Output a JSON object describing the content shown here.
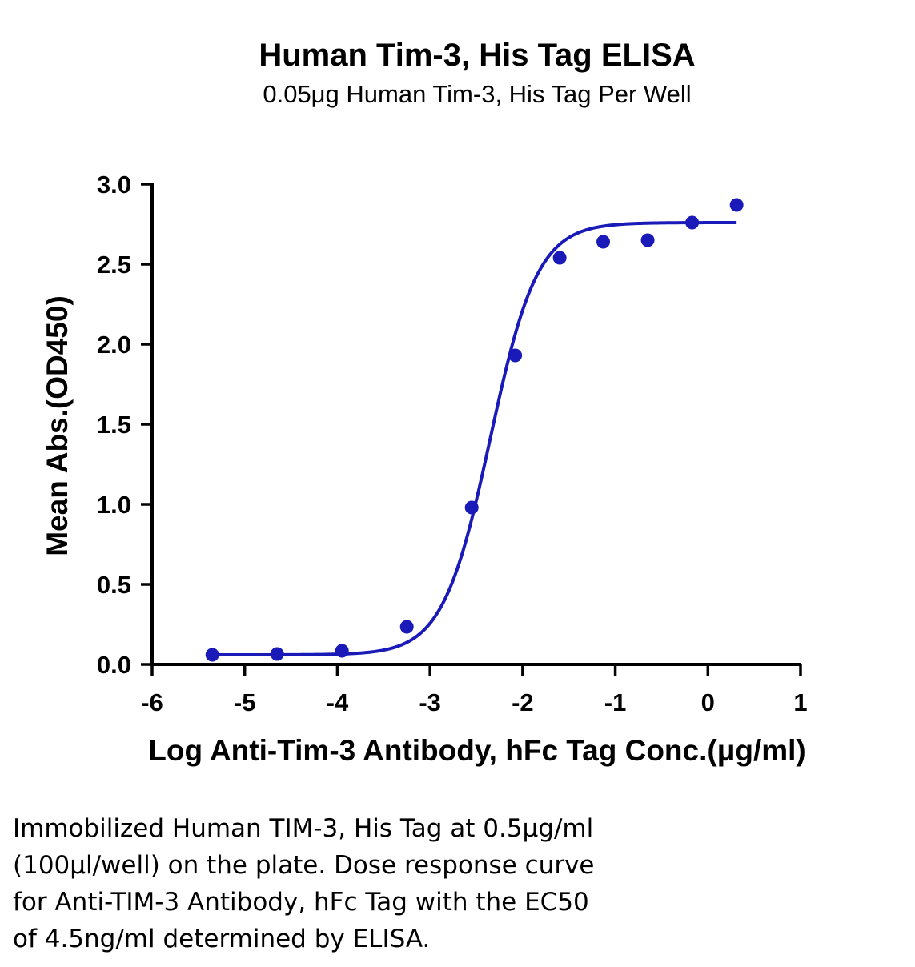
{
  "chart_data": {
    "type": "scatter",
    "title": "Human Tim-3, His Tag ELISA",
    "subtitle": "0.05μg Human Tim-3, His Tag Per Well",
    "xlabel": "Log Anti-Tim-3 Antibody, hFc Tag Conc.(μg/ml)",
    "ylabel": "Mean Abs.(OD450)",
    "xlim": [
      -6,
      1
    ],
    "ylim": [
      0,
      3.0
    ],
    "x_ticks": [
      "-6",
      "-5",
      "-4",
      "-3",
      "-2",
      "-1",
      "0",
      "1"
    ],
    "y_ticks": [
      "0.0",
      "0.5",
      "1.0",
      "1.5",
      "2.0",
      "2.5",
      "3.0"
    ],
    "grid": false,
    "series": [
      {
        "color": "#1a1ab8",
        "points": [
          {
            "x": -5.35,
            "y": 0.06
          },
          {
            "x": -4.65,
            "y": 0.065
          },
          {
            "x": -3.95,
            "y": 0.085
          },
          {
            "x": -3.25,
            "y": 0.235
          },
          {
            "x": -2.55,
            "y": 0.98
          },
          {
            "x": -2.08,
            "y": 1.93
          },
          {
            "x": -1.6,
            "y": 2.54
          },
          {
            "x": -1.13,
            "y": 2.64
          },
          {
            "x": -0.65,
            "y": 2.65
          },
          {
            "x": -0.17,
            "y": 2.76
          },
          {
            "x": 0.31,
            "y": 2.87
          }
        ],
        "fit": {
          "model": "4PL",
          "bottom": 0.06,
          "top": 2.76,
          "logEC50": -2.35,
          "hill": 1.7,
          "x_range": [
            -5.35,
            0.31
          ]
        }
      }
    ]
  },
  "caption": {
    "lines": [
      "Immobilized Human TIM-3, His Tag at 0.5μg/ml",
      "(100μl/well) on the plate. Dose response curve",
      "for Anti-TIM-3 Antibody, hFc Tag with the EC50",
      "of 4.5ng/ml determined by ELISA."
    ]
  }
}
